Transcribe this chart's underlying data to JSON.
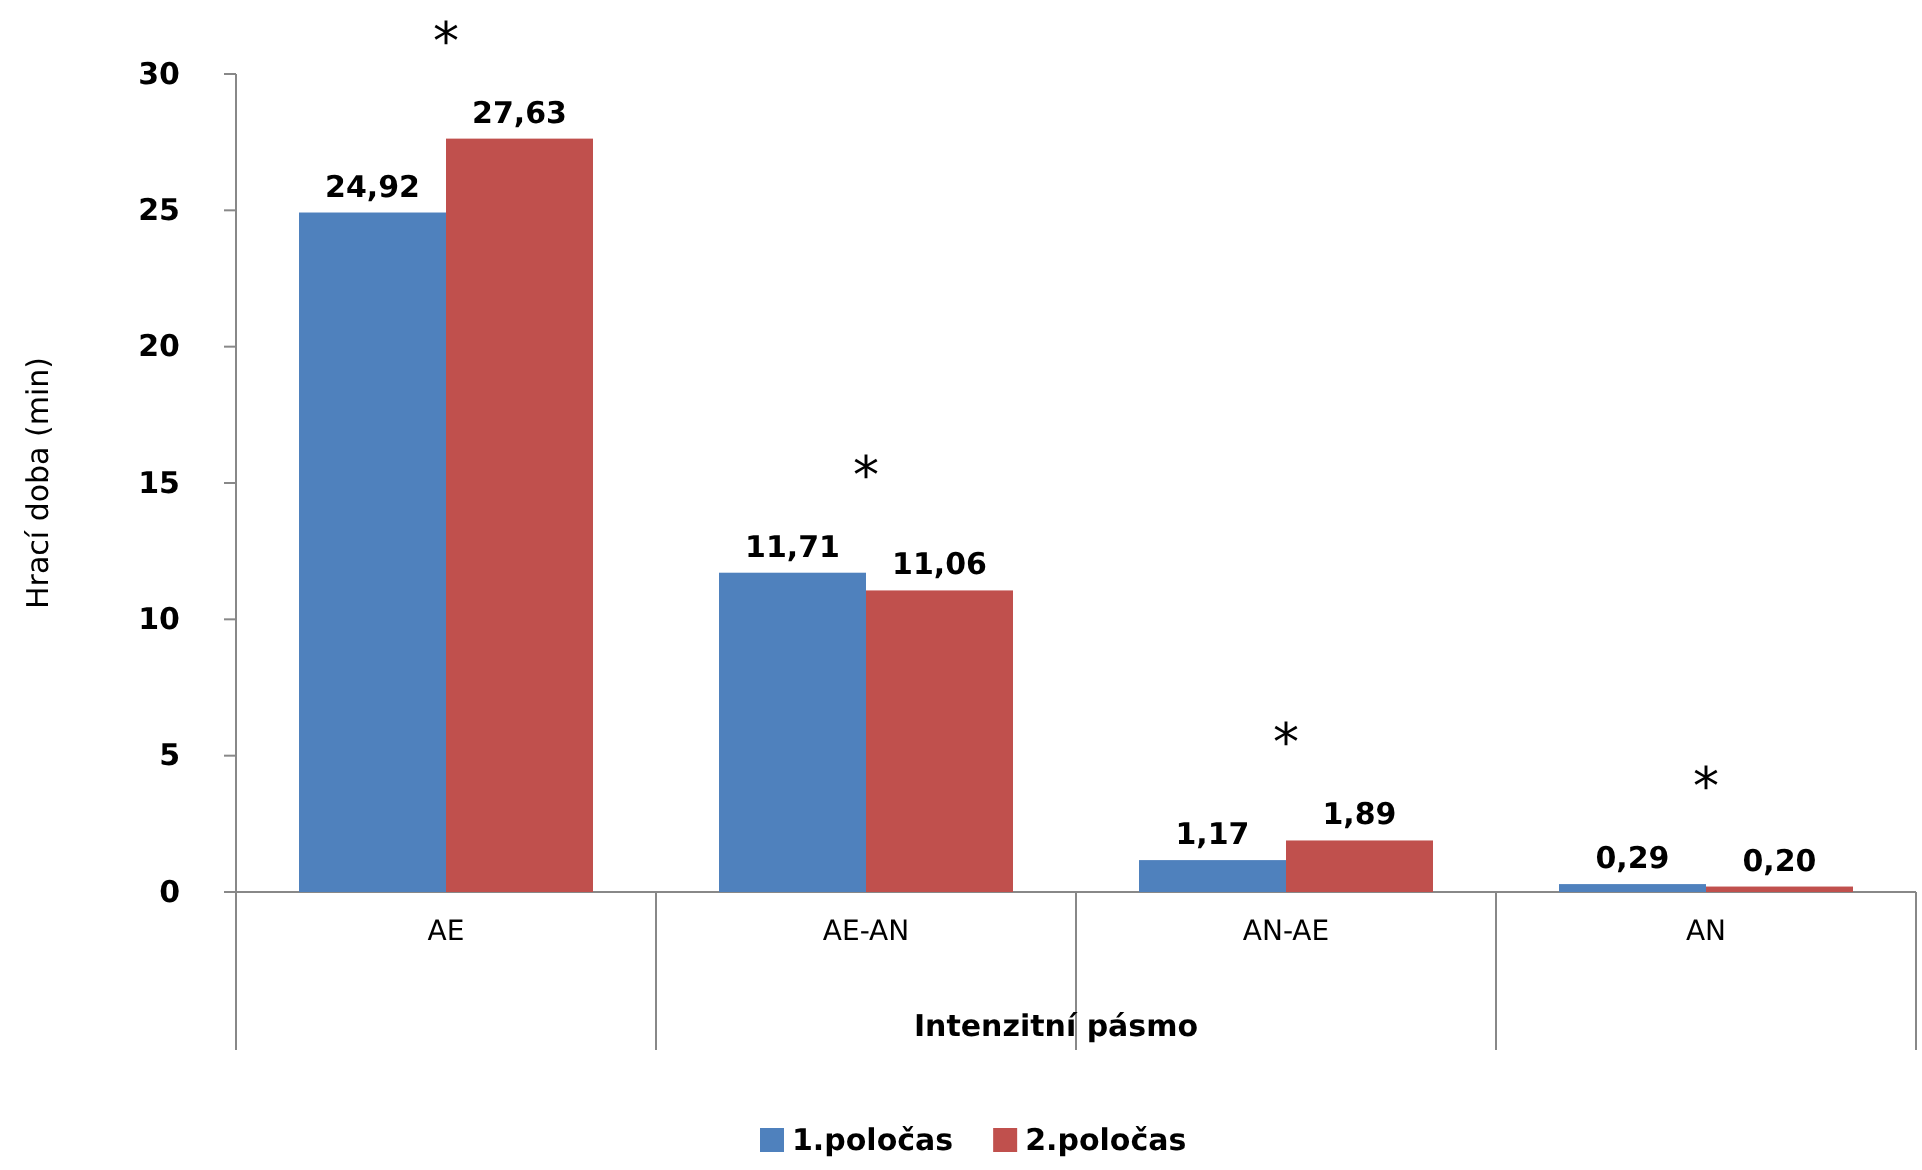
{
  "chart_data": {
    "type": "bar",
    "xlabel": "Intenzitní pásmo",
    "ylabel": "Hrací doba (min)",
    "categories": [
      "AE",
      "AE-AN",
      "AN-AE",
      "AN"
    ],
    "series": [
      {
        "name": "1.poločas",
        "color": "#4f81bd",
        "values": [
          24.92,
          11.71,
          1.17,
          0.29
        ],
        "value_labels": [
          "24,92",
          "11,71",
          "1,17",
          "0,29"
        ]
      },
      {
        "name": "2.poločas",
        "color": "#c0504d",
        "values": [
          27.63,
          11.06,
          1.89,
          0.2
        ],
        "value_labels": [
          "27,63",
          "11,06",
          "1,89",
          "0,20"
        ]
      }
    ],
    "ylim": [
      0,
      30
    ],
    "yticks": [
      0,
      5,
      10,
      15,
      20,
      25,
      30
    ],
    "grid": false,
    "legend": "bottom",
    "annotations": [
      "*",
      "*",
      "*",
      "*"
    ]
  }
}
